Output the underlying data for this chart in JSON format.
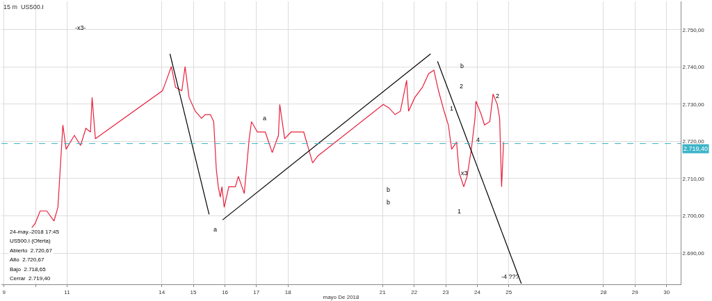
{
  "chart_data": {
    "type": "line",
    "title": "15 m  US500.I",
    "xlabel": "mayo De 2018",
    "xlim": [
      "2018-05-08T22:00",
      "2018-05-30T10:45"
    ],
    "ylim": [
      2681.6,
      2757.6
    ],
    "xticks": [
      {
        "value": "2018-05-09",
        "label": "9"
      },
      {
        "value": "2018-05-10",
        "label": null
      },
      {
        "value": "2018-05-11",
        "label": "11"
      },
      {
        "value": "2018-05-14",
        "label": "14"
      },
      {
        "value": "2018-05-15",
        "label": "15"
      },
      {
        "value": "2018-05-16",
        "label": "16"
      },
      {
        "value": "2018-05-17",
        "label": "17"
      },
      {
        "value": "2018-05-18",
        "label": "18"
      },
      {
        "value": "2018-05-21",
        "label": "21"
      },
      {
        "value": "2018-05-22",
        "label": "22"
      },
      {
        "value": "2018-05-23",
        "label": "23"
      },
      {
        "value": "2018-05-24",
        "label": "24"
      },
      {
        "value": "2018-05-25",
        "label": "25"
      },
      {
        "value": "2018-05-28",
        "label": "28"
      },
      {
        "value": "2018-05-29",
        "label": "29"
      },
      {
        "value": "2018-05-30",
        "label": "30"
      }
    ],
    "yticks": [
      {
        "value": 2690,
        "label": "2.690,00"
      },
      {
        "value": 2700,
        "label": "2.700,00"
      },
      {
        "value": 2710,
        "label": "2.710,00"
      },
      {
        "value": 2720,
        "label": "2.720,00"
      },
      {
        "value": 2730,
        "label": "2.730,00"
      },
      {
        "value": 2740,
        "label": "2.740,00"
      },
      {
        "value": 2750,
        "label": "2.750,00"
      }
    ],
    "grid": true,
    "marker": "none",
    "line_style": "solid",
    "series": [
      {
        "color": "#e8203c",
        "x": [
          "2018-05-09T21:00",
          "2018-05-09T23:45",
          "2018-05-10T03:30",
          "2018-05-10T08:30",
          "2018-05-10T14:00",
          "2018-05-10T17:00",
          "2018-05-10T19:30",
          "2018-05-10T20:45",
          "2018-05-10T23:15",
          "2018-05-11T05:30",
          "2018-05-11T10:15",
          "2018-05-11T14:15",
          "2018-05-11T17:45",
          "2018-05-11T19:00",
          "2018-05-11T21:30",
          "2018-05-14T00:30",
          "2018-05-14T02:30",
          "2018-05-14T07:15",
          "2018-05-14T10:30",
          "2018-05-14T15:15",
          "2018-05-14T17:45",
          "2018-05-14T20:45",
          "2018-05-15T01:30",
          "2018-05-15T06:15",
          "2018-05-15T09:00",
          "2018-05-15T13:00",
          "2018-05-15T15:30",
          "2018-05-15T17:30",
          "2018-05-15T19:00",
          "2018-05-15T20:30",
          "2018-05-15T21:45",
          "2018-05-15T23:30",
          "2018-05-16T03:00",
          "2018-05-16T08:00",
          "2018-05-16T10:15",
          "2018-05-16T14:45",
          "2018-05-16T18:30",
          "2018-05-16T20:15",
          "2018-05-17T00:45",
          "2018-05-17T06:45",
          "2018-05-17T12:00",
          "2018-05-17T16:45",
          "2018-05-17T17:45",
          "2018-05-17T21:30",
          "2018-05-18T02:15",
          "2018-05-18T07:45",
          "2018-05-18T12:00",
          "2018-05-18T15:45",
          "2018-05-18T18:45",
          "2018-05-18T22:45",
          "2018-05-21T00:30",
          "2018-05-21T04:45",
          "2018-05-21T09:30",
          "2018-05-21T13:30",
          "2018-05-21T18:15",
          "2018-05-21T19:45",
          "2018-05-22T00:30",
          "2018-05-22T06:15",
          "2018-05-22T11:00",
          "2018-05-22T15:00",
          "2018-05-22T18:30",
          "2018-05-22T22:45",
          "2018-05-23T02:00",
          "2018-05-23T04:30",
          "2018-05-23T08:15",
          "2018-05-23T10:15",
          "2018-05-23T13:45",
          "2018-05-23T16:15",
          "2018-05-23T19:30",
          "2018-05-23T22:15",
          "2018-05-23T23:00",
          "2018-05-24T03:00",
          "2018-05-24T05:30",
          "2018-05-24T09:30",
          "2018-05-24T12:00",
          "2018-05-24T15:15",
          "2018-05-24T17:00",
          "2018-05-24T18:30",
          "2018-05-24T20:00"
        ],
        "values": [
          2696.7,
          2698.0,
          2701.3,
          2701.3,
          2698.6,
          2702.3,
          2717.0,
          2724.4,
          2717.9,
          2721.6,
          2718.9,
          2723.5,
          2722.5,
          2731.8,
          2720.7,
          2733.6,
          2735.4,
          2740.1,
          2734.5,
          2733.6,
          2740.1,
          2731.8,
          2728.1,
          2726.2,
          2727.2,
          2727.2,
          2725.3,
          2712.4,
          2707.8,
          2705.0,
          2707.8,
          2702.3,
          2707.8,
          2707.8,
          2710.6,
          2706.0,
          2720.7,
          2725.3,
          2722.5,
          2722.5,
          2717.0,
          2721.6,
          2729.9,
          2720.7,
          2722.5,
          2722.5,
          2722.5,
          2717.9,
          2714.2,
          2716.1,
          2729.9,
          2729.0,
          2727.2,
          2728.1,
          2736.4,
          2728.1,
          2731.8,
          2734.5,
          2738.2,
          2739.1,
          2733.6,
          2728.1,
          2724.4,
          2717.9,
          2719.8,
          2711.5,
          2707.8,
          2710.6,
          2717.9,
          2726.2,
          2730.8,
          2727.2,
          2724.4,
          2725.3,
          2732.7,
          2729.9,
          2726.2,
          2707.8,
          2719.8
        ]
      },
      {
        "color": "#000000",
        "x": [
          "2018-05-14T06:15",
          "2018-05-15T12:00"
        ],
        "values": [
          2743.5,
          2700.4
        ]
      },
      {
        "color": "#000000",
        "x": [
          "2018-05-15T22:15",
          "2018-05-22T12:30"
        ],
        "values": [
          2698.9,
          2743.5
        ]
      },
      {
        "color": "#000000",
        "x": [
          "2018-05-22T17:45",
          "2018-05-25T09:30"
        ],
        "values": [
          2741.5,
          2681.8
        ]
      }
    ],
    "ref_lines": [
      {
        "axis": "y",
        "value": 2719.4,
        "label": "2.719,40",
        "color": "#3cb4c8",
        "line_style": "dashed"
      }
    ],
    "annotations": [
      "-x3-",
      "a",
      "b",
      "2",
      "1",
      "-4 ???",
      "a",
      "b",
      "b",
      "1",
      "2",
      "4",
      "x3",
      "24-may.-2018 17:45",
      "US500.I (Oferta)",
      "Abierto  2.720,67",
      "Alto  2.720,67",
      "Bajo  2.718,65",
      "Cerrar  2.719,40"
    ]
  }
}
